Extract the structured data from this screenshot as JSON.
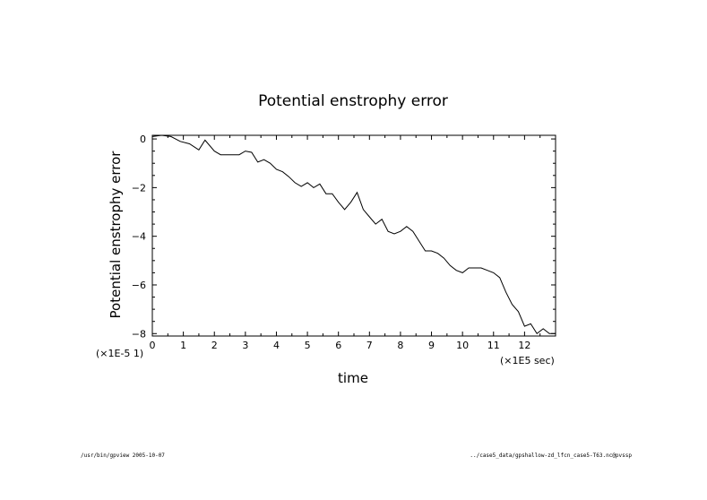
{
  "chart_data": {
    "type": "line",
    "title": "Potential enstrophy error",
    "xlabel": "time",
    "ylabel": "Potential enstrophy error",
    "x_scale_label": "(×1E5 sec)",
    "y_scale_label": "(×1E-5 1)",
    "xlim": [
      0,
      13
    ],
    "ylim": [
      -8.1,
      0.15
    ],
    "x_ticks": [
      0,
      1,
      2,
      3,
      4,
      5,
      6,
      7,
      8,
      9,
      10,
      11,
      12
    ],
    "x_tick_labels": [
      "0",
      "1",
      "2",
      "3",
      "4",
      "5",
      "6",
      "7",
      "8",
      "9",
      "10",
      "11",
      "12"
    ],
    "y_ticks": [
      0,
      -2,
      -4,
      -6,
      -8
    ],
    "y_tick_labels": [
      "0",
      "−2",
      "−4",
      "−6",
      "−8"
    ],
    "grid": false,
    "series": [
      {
        "x": [
          0,
          0.3,
          0.6,
          0.9,
          1.2,
          1.5,
          1.7,
          2.0,
          2.2,
          2.5,
          2.8,
          3.0,
          3.2,
          3.4,
          3.6,
          3.8,
          4.0,
          4.2,
          4.4,
          4.6,
          4.8,
          5.0,
          5.2,
          5.4,
          5.6,
          5.8,
          6.0,
          6.2,
          6.4,
          6.6,
          6.8,
          7.0,
          7.2,
          7.4,
          7.6,
          7.8,
          8.0,
          8.2,
          8.4,
          8.6,
          8.8,
          9.0,
          9.2,
          9.4,
          9.6,
          9.8,
          10.0,
          10.2,
          10.4,
          10.6,
          10.8,
          11.0,
          11.2,
          11.4,
          11.6,
          11.8,
          12.0,
          12.2,
          12.4,
          12.6,
          12.8,
          13.0
        ],
        "y": [
          0.1,
          0.15,
          0.1,
          -0.1,
          -0.2,
          -0.45,
          -0.05,
          -0.5,
          -0.65,
          -0.65,
          -0.65,
          -0.5,
          -0.55,
          -0.95,
          -0.85,
          -1.0,
          -1.25,
          -1.35,
          -1.55,
          -1.8,
          -1.95,
          -1.8,
          -2.0,
          -1.85,
          -2.25,
          -2.25,
          -2.6,
          -2.9,
          -2.6,
          -2.2,
          -2.9,
          -3.2,
          -3.5,
          -3.3,
          -3.8,
          -3.9,
          -3.8,
          -3.6,
          -3.8,
          -4.2,
          -4.6,
          -4.6,
          -4.7,
          -4.9,
          -5.2,
          -5.4,
          -5.5,
          -5.3,
          -5.3,
          -5.3,
          -5.4,
          -5.5,
          -5.7,
          -6.3,
          -6.8,
          -7.1,
          -7.7,
          -7.6,
          -8.0,
          -7.8,
          -8.0,
          -8.0
        ]
      }
    ]
  },
  "footer": {
    "left": "/usr/bin/gpview  2005-10-07",
    "right": "../case5_data/gpshallow-zd_lfcn_case5-T63.nc@pvssp"
  }
}
